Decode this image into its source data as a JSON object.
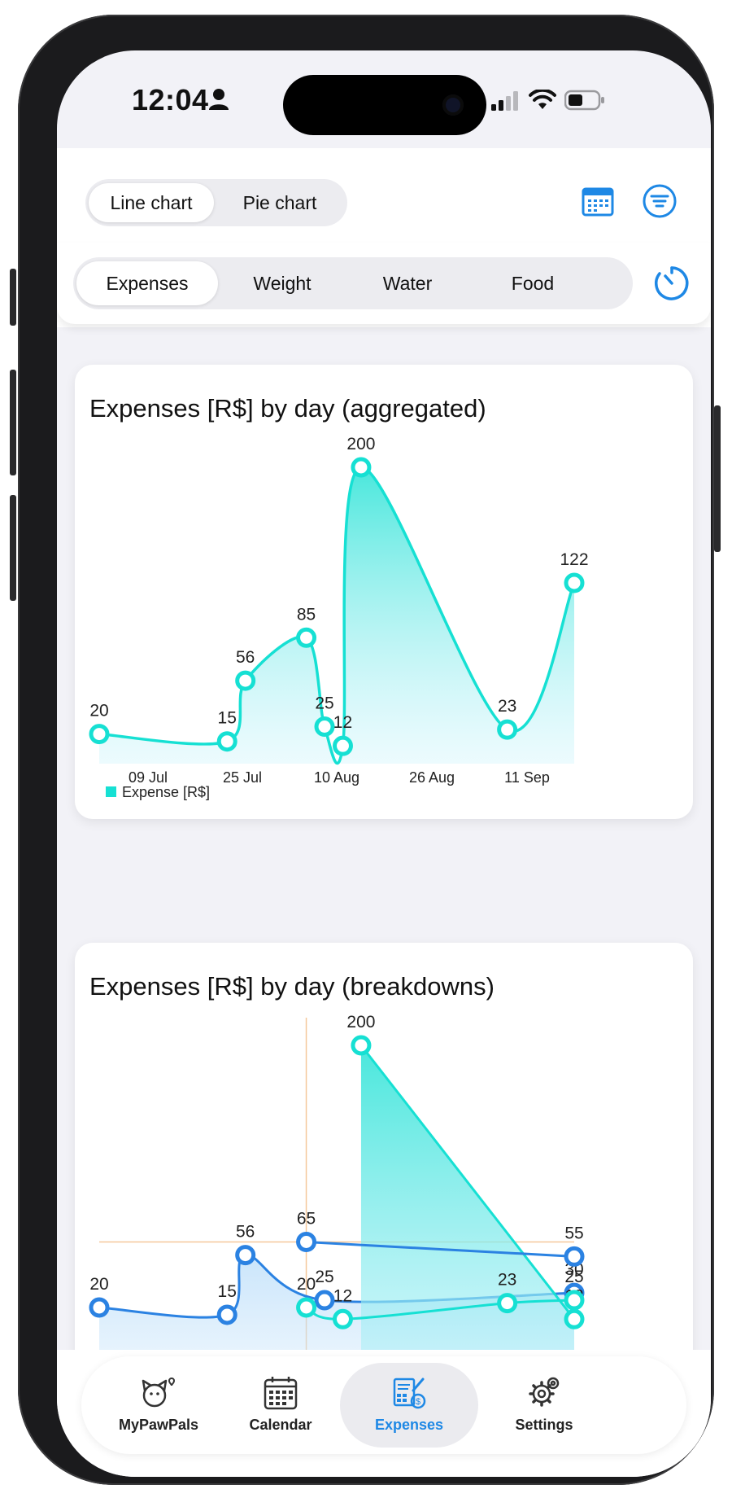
{
  "status": {
    "time": "12:04"
  },
  "top_segment": {
    "options": [
      "Line chart",
      "Pie chart"
    ],
    "selected": "Line chart"
  },
  "metric_tabs": {
    "options": [
      "Expenses",
      "Weight",
      "Water",
      "Food"
    ],
    "selected": "Expenses"
  },
  "colors": {
    "accent": "#1e88e5",
    "teal": "#16e0d3",
    "blue": "#2b82e2",
    "grid_highlight": "#f5c89a"
  },
  "chart_data": [
    {
      "type": "area",
      "title": "Expenses [R$] by day (aggregated)",
      "x_ticks": [
        "09 Jul",
        "25 Jul",
        "10 Aug",
        "26 Aug",
        "11 Sep"
      ],
      "legend": [
        "Expense [R$]"
      ],
      "series": [
        {
          "name": "Expense [R$]",
          "points": [
            {
              "x": "2024-07-03",
              "y": 20
            },
            {
              "x": "2024-07-24",
              "y": 15
            },
            {
              "x": "2024-07-27",
              "y": 56
            },
            {
              "x": "2024-08-06",
              "y": 85
            },
            {
              "x": "2024-08-09",
              "y": 25
            },
            {
              "x": "2024-08-12",
              "y": 12
            },
            {
              "x": "2024-08-15",
              "y": 200
            },
            {
              "x": "2024-09-08",
              "y": 23
            },
            {
              "x": "2024-09-19",
              "y": 122
            }
          ]
        }
      ]
    },
    {
      "type": "area",
      "title": "Expenses [R$] by day (breakdowns)",
      "series": [
        {
          "points": [
            {
              "x": "2024-07-03",
              "y": 20
            },
            {
              "x": "2024-07-24",
              "y": 15
            },
            {
              "x": "2024-07-27",
              "y": 56
            },
            {
              "x": "2024-08-09",
              "y": 25
            },
            {
              "x": "2024-09-19",
              "y": 30
            }
          ]
        },
        {
          "points": [
            {
              "x": "2024-08-06",
              "y": 65
            },
            {
              "x": "2024-09-19",
              "y": 55
            }
          ]
        },
        {
          "points": [
            {
              "x": "2024-08-06",
              "y": 20
            },
            {
              "x": "2024-08-12",
              "y": 12
            },
            {
              "x": "2024-09-08",
              "y": 23
            },
            {
              "x": "2024-09-19",
              "y": 25
            }
          ]
        },
        {
          "points": [
            {
              "x": "2024-08-15",
              "y": 200
            },
            {
              "x": "2024-09-19",
              "y": 12
            }
          ]
        }
      ]
    }
  ],
  "tabbar": {
    "items": [
      {
        "label": "MyPawPals",
        "icon": "pets-icon"
      },
      {
        "label": "Calendar",
        "icon": "calendar-icon"
      },
      {
        "label": "Expenses",
        "icon": "expenses-icon"
      },
      {
        "label": "Settings",
        "icon": "settings-icon"
      }
    ],
    "selected": "Expenses"
  }
}
